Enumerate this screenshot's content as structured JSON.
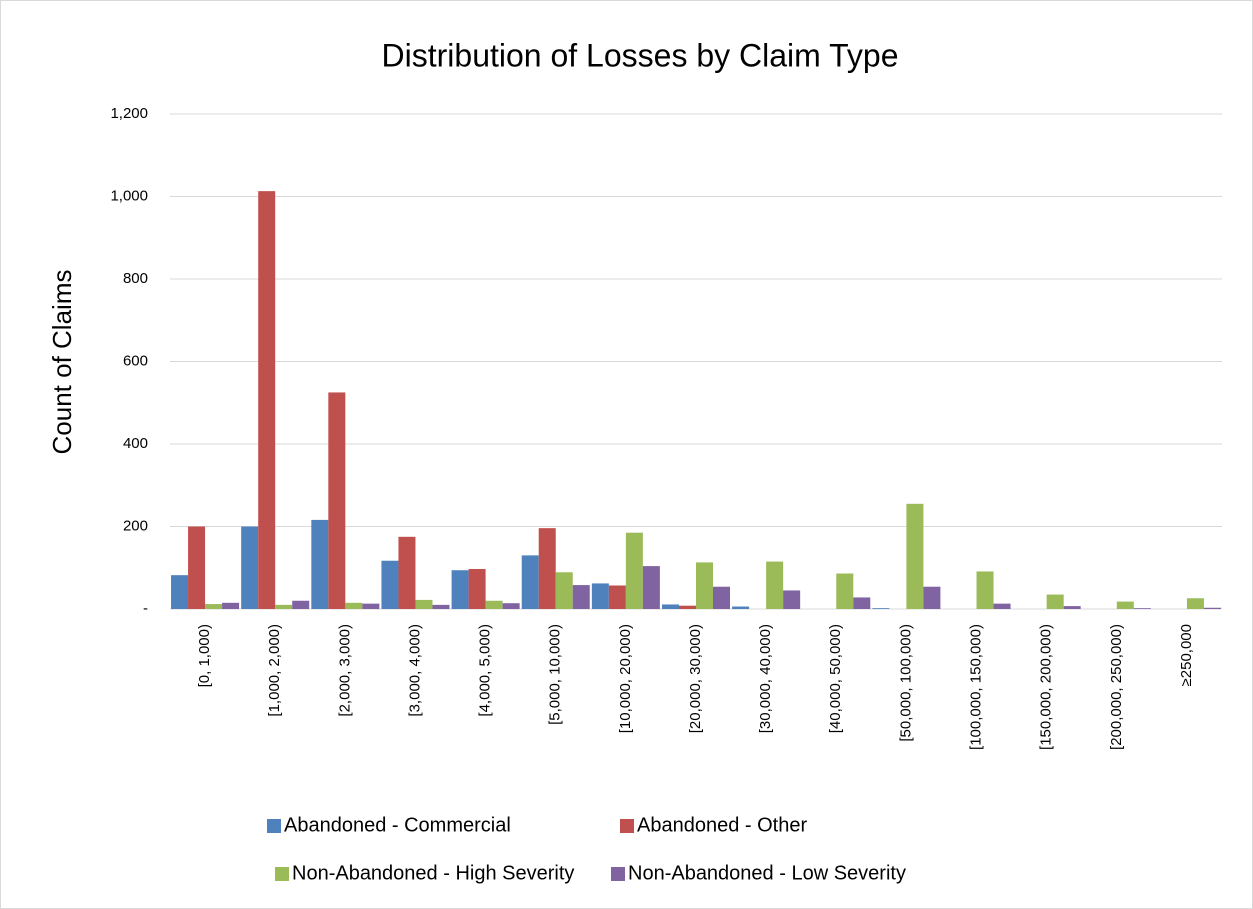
{
  "chart_data": {
    "type": "bar",
    "title": "Distribution of Losses by Claim Type",
    "y_label": "Count of Claims",
    "categories": [
      "[0, 1,000)",
      "[1,000, 2,000)",
      "[2,000, 3,000)",
      "[3,000, 4,000)",
      "[4,000, 5,000)",
      "[5,000, 10,000)",
      "[10,000, 20,000)",
      "[20,000, 30,000)",
      "[30,000, 40,000)",
      "[40,000, 50,000)",
      "[50,000, 100,000)",
      "[100,000, 150,000)",
      "[150,000, 200,000)",
      "[200,000, 250,000)",
      "≥250,000"
    ],
    "series": [
      {
        "name": "Abandoned - Commercial",
        "color": "#4f81bd",
        "values": [
          82,
          200,
          216,
          117,
          94,
          130,
          62,
          11,
          6,
          0,
          2,
          0,
          0,
          0,
          0
        ]
      },
      {
        "name": "Abandoned - Other",
        "color": "#c0504d",
        "values": [
          200,
          1013,
          525,
          175,
          97,
          196,
          57,
          8,
          0,
          0,
          0,
          0,
          0,
          0,
          0
        ]
      },
      {
        "name": "Non-Abandoned - High Severity",
        "color": "#9bbb59",
        "values": [
          12,
          10,
          15,
          22,
          20,
          89,
          185,
          113,
          115,
          86,
          255,
          91,
          35,
          18,
          26
        ]
      },
      {
        "name": "Non-Abandoned - Low Severity",
        "color": "#8064a2",
        "values": [
          15,
          20,
          13,
          10,
          14,
          58,
          104,
          54,
          45,
          28,
          54,
          13,
          7,
          2,
          3
        ]
      }
    ],
    "ylim": [
      0,
      1200
    ],
    "yticks": [
      {
        "value": 0,
        "label": "-"
      },
      200,
      400,
      600,
      800,
      {
        "value": 1000,
        "label": "1,000"
      },
      {
        "value": 1200,
        "label": "1,200"
      }
    ],
    "grid": true,
    "legend": "bottom"
  }
}
